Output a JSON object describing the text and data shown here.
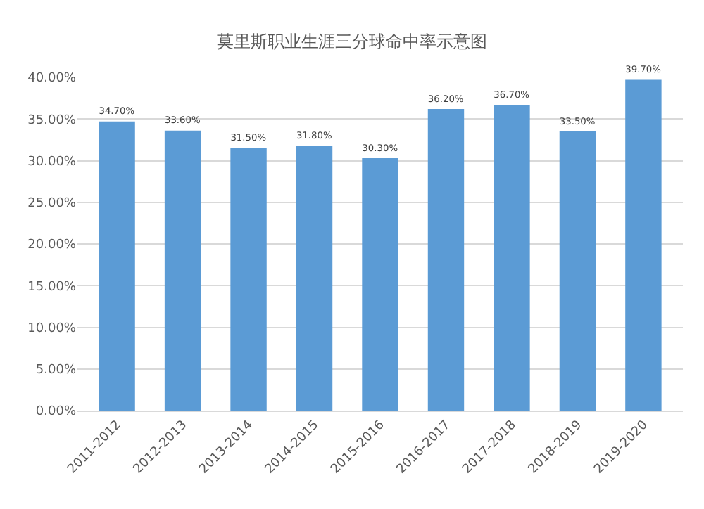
{
  "chart_data": {
    "type": "bar",
    "title": "莫里斯职业生涯三分球命中率示意图",
    "categories": [
      "2011-2012",
      "2012-2013",
      "2013-2014",
      "2014-2015",
      "2015-2016",
      "2016-2017",
      "2017-2018",
      "2018-2019",
      "2019-2020"
    ],
    "values": [
      34.7,
      33.6,
      31.5,
      31.8,
      30.3,
      36.2,
      36.7,
      33.5,
      39.7
    ],
    "value_labels": [
      "34.70%",
      "33.60%",
      "31.50%",
      "31.80%",
      "30.30%",
      "36.20%",
      "36.70%",
      "33.50%",
      "39.70%"
    ],
    "color": "#5b9bd5",
    "ylim": [
      0,
      40
    ],
    "yticks": [
      {
        "value": 0,
        "label": "0.00%"
      },
      {
        "value": 5,
        "label": "5.00%"
      },
      {
        "value": 10,
        "label": "10.00%"
      },
      {
        "value": 15,
        "label": "15.00%"
      },
      {
        "value": 20,
        "label": "20.00%"
      },
      {
        "value": 25,
        "label": "25.00%"
      },
      {
        "value": 30,
        "label": "30.00%"
      },
      {
        "value": 35,
        "label": "35.00%"
      },
      {
        "value": 40,
        "label": "40.00%"
      }
    ],
    "grid": "y"
  }
}
